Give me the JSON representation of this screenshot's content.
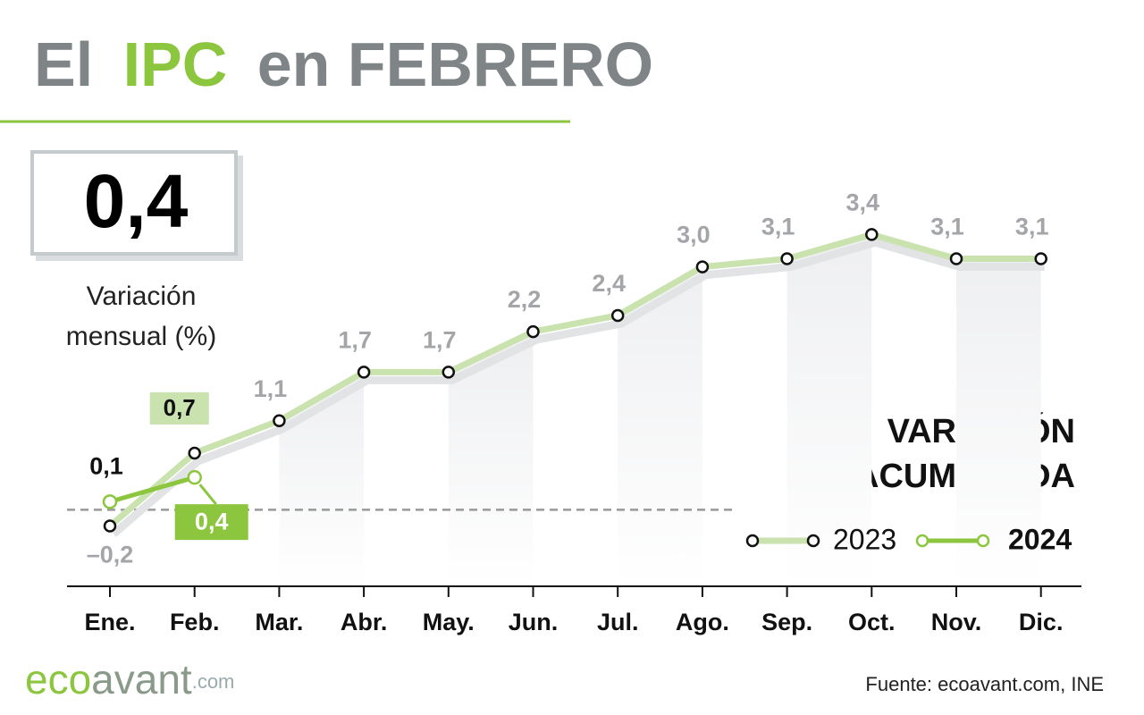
{
  "title_parts": [
    "El",
    "IPC",
    "en FEBRERO"
  ],
  "headline": {
    "value": "0,4",
    "caption": [
      "Variación",
      "mensual (%)"
    ]
  },
  "source": "Fuente: ecoavant.com, INE",
  "logo": [
    "eco",
    "avant",
    ".com"
  ],
  "chart_data": {
    "type": "line",
    "title": [
      "VARIACIÓN",
      "ACUMULADA"
    ],
    "categories": [
      "Ene.",
      "Feb.",
      "Mar.",
      "Abr.",
      "May.",
      "Jun.",
      "Jul.",
      "Ago.",
      "Sep.",
      "Oct.",
      "Nov.",
      "Dic."
    ],
    "series": [
      {
        "name": "2023",
        "color": "#c9e2ae",
        "values": [
          -0.2,
          0.7,
          1.1,
          1.7,
          1.7,
          2.2,
          2.4,
          3.0,
          3.1,
          3.4,
          3.1,
          3.1
        ],
        "value_labels": [
          "–0,2",
          "0,7",
          "1,1",
          "1,7",
          "1,7",
          "2,2",
          "2,4",
          "3,0",
          "3,1",
          "3,4",
          "3,1",
          "3,1"
        ]
      },
      {
        "name": "2024",
        "color": "#8cc63f",
        "values": [
          0.1,
          0.4,
          null,
          null,
          null,
          null,
          null,
          null,
          null,
          null,
          null,
          null
        ],
        "value_labels": [
          "0,1",
          "0,4",
          null,
          null,
          null,
          null,
          null,
          null,
          null,
          null,
          null,
          null
        ]
      }
    ],
    "ylim": [
      -1,
      4
    ],
    "zero_line": true
  }
}
